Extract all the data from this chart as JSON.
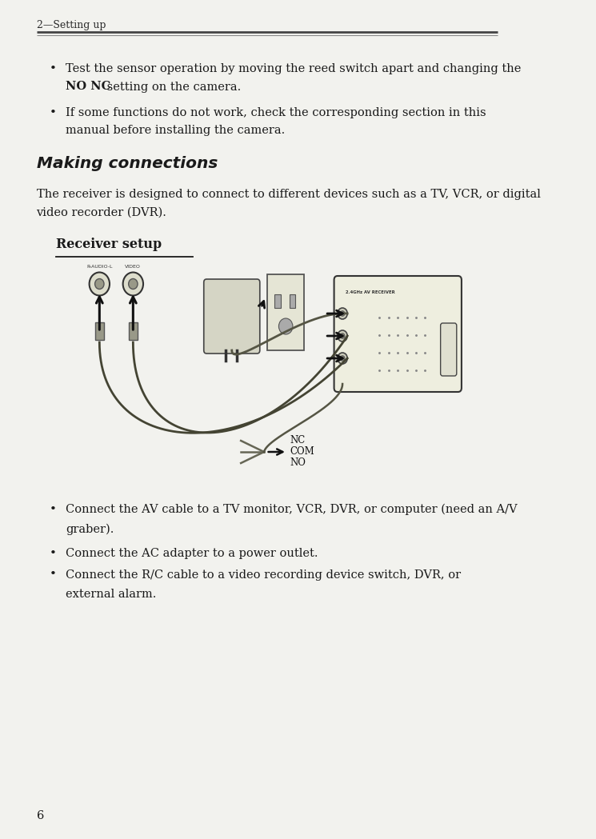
{
  "bg_color": "#f2f2ee",
  "header_text": "2—Setting up",
  "bullet1_line1": "Test the sensor operation by moving the reed switch apart and changing the",
  "bullet1_line2_bold": "NO NC",
  "bullet1_line2_rest": " setting on the camera.",
  "bullet2_line1": "If some functions do not work, check the corresponding section in this",
  "bullet2_line2": "manual before installing the camera.",
  "section_title": "Making connections",
  "intro_line1": "The receiver is designed to connect to different devices such as a TV, VCR, or digital",
  "intro_line2": "video recorder (DVR).",
  "subsection_title": "Receiver setup",
  "bullet3_line1": "Connect the AV cable to a TV monitor, VCR, DVR, or computer (need an A/V",
  "bullet3_line2": "graber).",
  "bullet4": "Connect the AC adapter to a power outlet.",
  "bullet5_line1": "Connect the R/C cable to a video recording device switch, DVR, or",
  "bullet5_line2": "external alarm.",
  "page_number": "6",
  "text_color": "#1a1a1a",
  "header_color": "#2a2a2a",
  "label_raudio": "R-AUDIO-L",
  "label_video": "VIDEO",
  "label_nc": "NC",
  "label_com": "COM",
  "label_no": "NO",
  "label_receiver": "2.4GHz AV RECEIVER"
}
